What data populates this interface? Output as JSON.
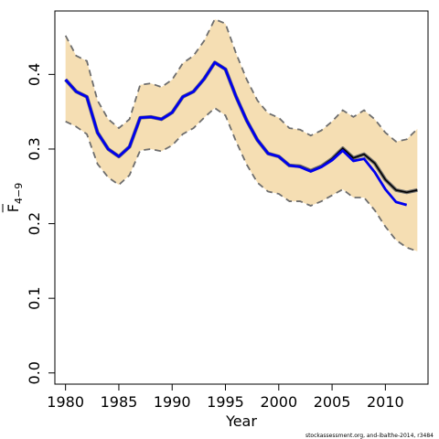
{
  "chart_data": {
    "type": "line",
    "xlabel": "Year",
    "ylabel_main": "F",
    "ylabel_sub": "4−9",
    "xlim": [
      1979,
      2014
    ],
    "ylim": [
      -0.015,
      0.485
    ],
    "x_ticks": [
      1980,
      1985,
      1990,
      1995,
      2000,
      2005,
      2010
    ],
    "x_tick_labels": [
      "1980",
      "1985",
      "1990",
      "1995",
      "2000",
      "2005",
      "2010"
    ],
    "y_ticks": [
      0.0,
      0.1,
      0.2,
      0.3,
      0.4
    ],
    "y_tick_labels": [
      "0.0",
      "0.1",
      "0.2",
      "0.3",
      "0.4"
    ],
    "credit": "stockassessment.org, and-ibalthe-2014, r3484",
    "colors": {
      "band_fill": "#f5deb3",
      "band_border": "#6e6e6e",
      "main_line": "#0000ee",
      "secondary_line": "#000000",
      "axis": "#000000"
    },
    "x": [
      1980,
      1981,
      1982,
      1983,
      1984,
      1985,
      1986,
      1987,
      1988,
      1989,
      1990,
      1991,
      1992,
      1993,
      1994,
      1995,
      1996,
      1997,
      1998,
      1999,
      2000,
      2001,
      2002,
      2003,
      2004,
      2005,
      2006,
      2007,
      2008,
      2009,
      2010,
      2011,
      2012,
      2013
    ],
    "series": [
      {
        "role": "upper-confidence-bound",
        "values": [
          0.452,
          0.425,
          0.418,
          0.365,
          0.34,
          0.328,
          0.34,
          0.386,
          0.388,
          0.383,
          0.393,
          0.415,
          0.425,
          0.445,
          0.474,
          0.468,
          0.428,
          0.393,
          0.365,
          0.348,
          0.342,
          0.328,
          0.326,
          0.318,
          0.325,
          0.337,
          0.352,
          0.343,
          0.352,
          0.34,
          0.322,
          0.31,
          0.313,
          0.327
        ]
      },
      {
        "role": "lower-confidence-bound",
        "values": [
          0.337,
          0.33,
          0.32,
          0.28,
          0.262,
          0.252,
          0.265,
          0.298,
          0.3,
          0.297,
          0.305,
          0.32,
          0.328,
          0.342,
          0.355,
          0.345,
          0.31,
          0.279,
          0.255,
          0.243,
          0.24,
          0.23,
          0.23,
          0.224,
          0.23,
          0.238,
          0.246,
          0.235,
          0.235,
          0.218,
          0.196,
          0.178,
          0.168,
          0.163
        ]
      },
      {
        "role": "estimate-latest",
        "values": [
          0.393,
          0.377,
          0.37,
          0.322,
          0.3,
          0.29,
          0.303,
          0.342,
          0.343,
          0.34,
          0.349,
          0.37,
          0.377,
          0.394,
          0.416,
          0.407,
          0.37,
          0.338,
          0.312,
          0.294,
          0.29,
          0.278,
          0.277,
          0.271,
          0.277,
          0.287,
          0.301,
          0.288,
          0.293,
          0.281,
          0.259,
          0.245,
          0.242,
          0.245
        ]
      },
      {
        "role": "estimate-highlighted",
        "values": [
          0.393,
          0.377,
          0.37,
          0.322,
          0.3,
          0.29,
          0.303,
          0.342,
          0.343,
          0.34,
          0.349,
          0.37,
          0.377,
          0.394,
          0.416,
          0.407,
          0.37,
          0.338,
          0.312,
          0.294,
          0.29,
          0.278,
          0.276,
          0.27,
          0.276,
          0.285,
          0.298,
          0.284,
          0.287,
          0.269,
          0.246,
          0.229,
          0.225,
          null
        ]
      }
    ]
  }
}
